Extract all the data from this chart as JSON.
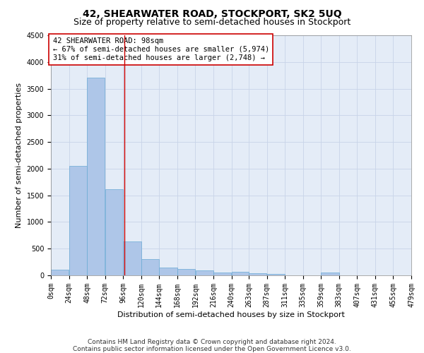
{
  "title": "42, SHEARWATER ROAD, STOCKPORT, SK2 5UQ",
  "subtitle": "Size of property relative to semi-detached houses in Stockport",
  "xlabel": "Distribution of semi-detached houses by size in Stockport",
  "ylabel": "Number of semi-detached properties",
  "footer_line1": "Contains HM Land Registry data © Crown copyright and database right 2024.",
  "footer_line2": "Contains public sector information licensed under the Open Government Licence v3.0.",
  "annotation_line1": "42 SHEARWATER ROAD: 98sqm",
  "annotation_line2": "← 67% of semi-detached houses are smaller (5,974)",
  "annotation_line3": "31% of semi-detached houses are larger (2,748) →",
  "property_size": 98,
  "bins": [
    0,
    24,
    48,
    72,
    96,
    120,
    144,
    168,
    192,
    216,
    240,
    263,
    287,
    311,
    335,
    359,
    383,
    407,
    431,
    455,
    479
  ],
  "bin_labels": [
    "0sqm",
    "24sqm",
    "48sqm",
    "72sqm",
    "96sqm",
    "120sqm",
    "144sqm",
    "168sqm",
    "192sqm",
    "216sqm",
    "240sqm",
    "263sqm",
    "287sqm",
    "311sqm",
    "335sqm",
    "359sqm",
    "383sqm",
    "407sqm",
    "431sqm",
    "455sqm",
    "479sqm"
  ],
  "counts": [
    100,
    2050,
    3700,
    1620,
    630,
    300,
    150,
    120,
    90,
    50,
    70,
    35,
    25,
    0,
    0,
    50,
    0,
    0,
    0,
    0
  ],
  "bar_color": "#aec6e8",
  "bar_edge_color": "#6aaad4",
  "marker_color": "#cc0000",
  "ylim": [
    0,
    4500
  ],
  "yticks": [
    0,
    500,
    1000,
    1500,
    2000,
    2500,
    3000,
    3500,
    4000,
    4500
  ],
  "grid_color": "#c8d4e8",
  "background_color": "#e4ecf7",
  "title_fontsize": 10,
  "subtitle_fontsize": 9,
  "axis_label_fontsize": 8,
  "tick_fontsize": 7,
  "annotation_fontsize": 7.5,
  "footer_fontsize": 6.5
}
